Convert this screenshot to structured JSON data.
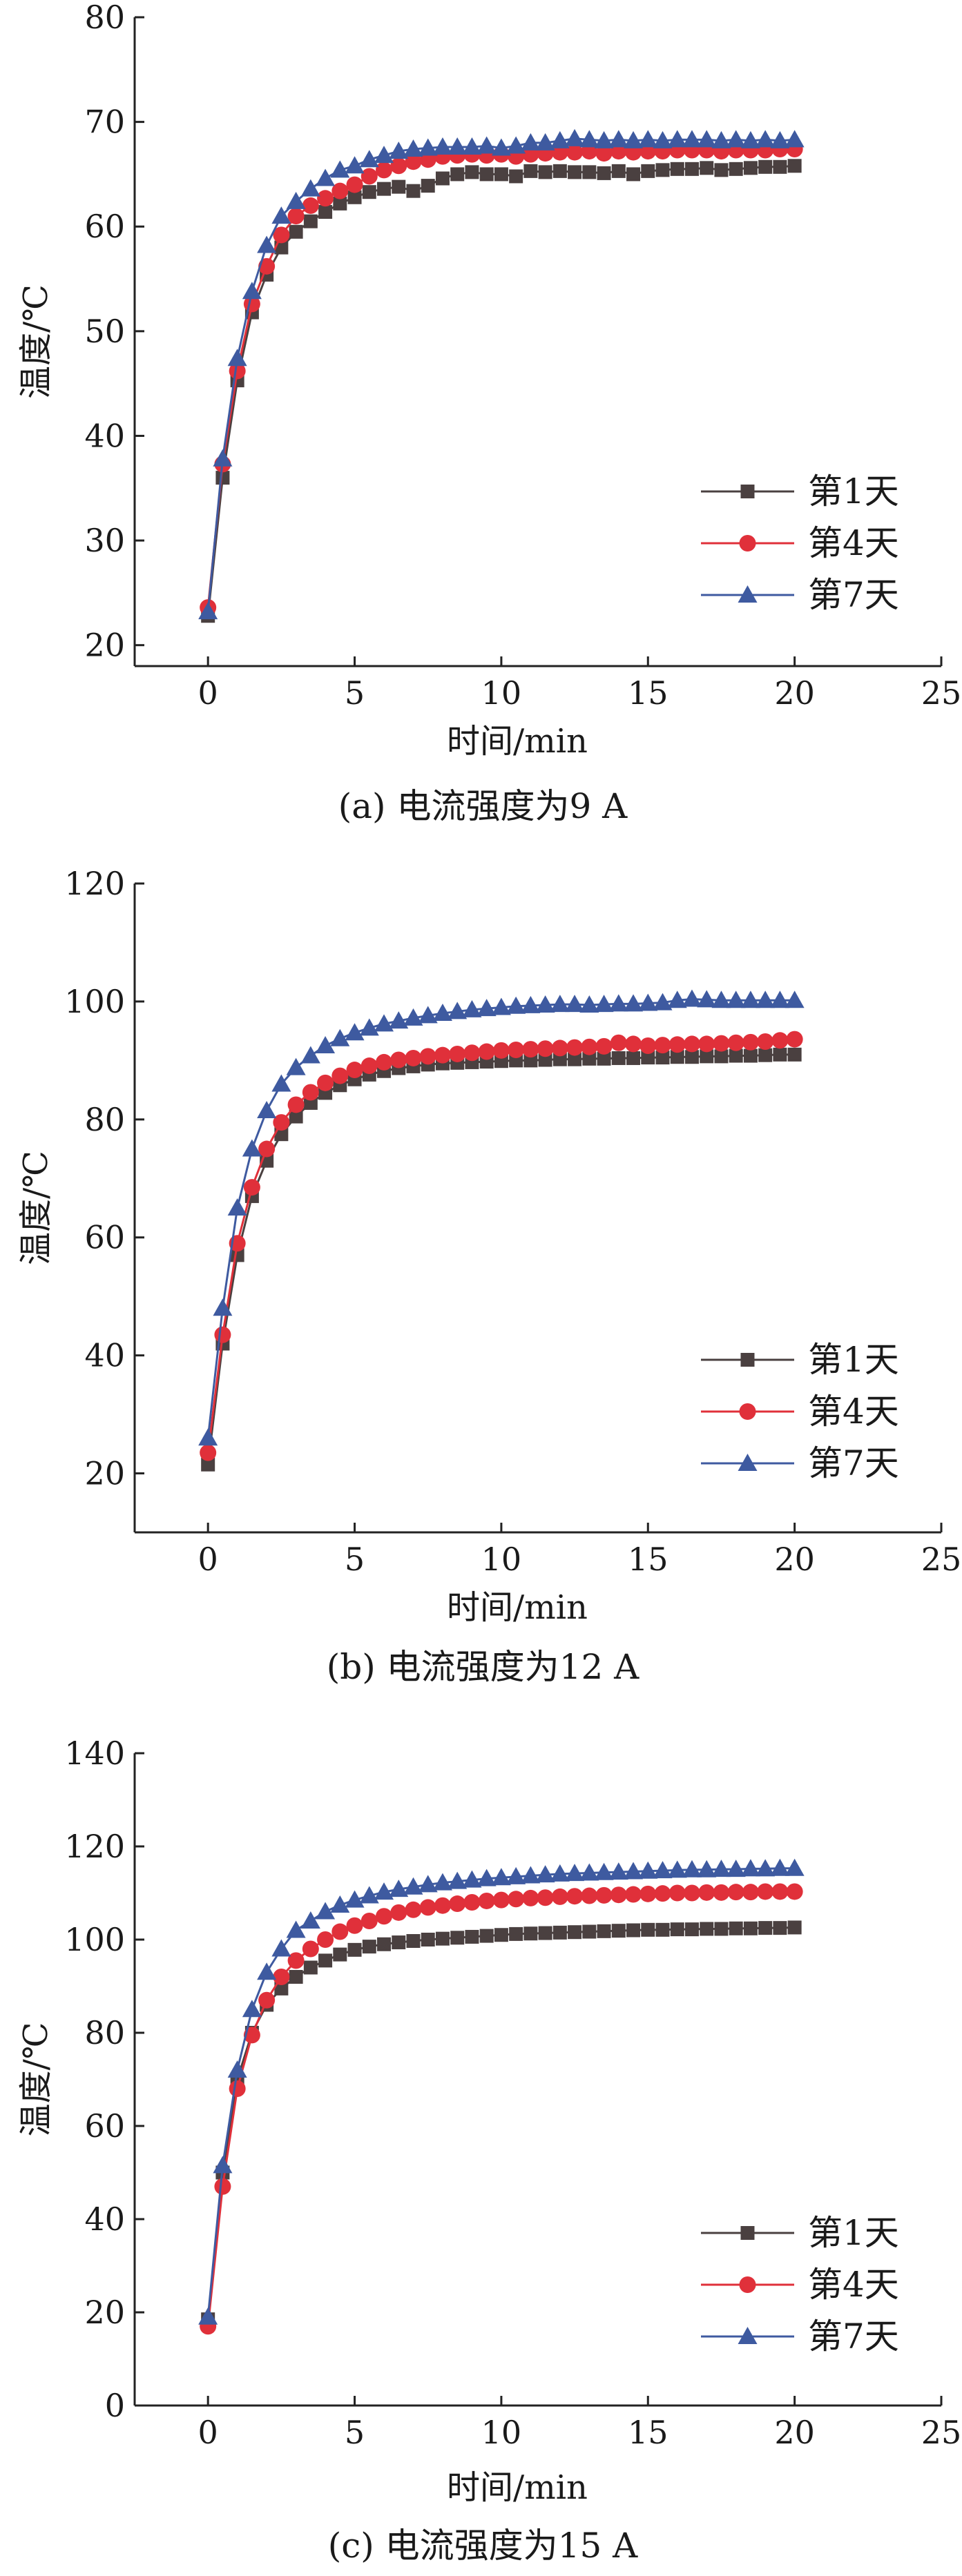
{
  "chart_data": [
    {
      "type": "line",
      "caption": "(a) 电流强度为9 A",
      "xlabel": "时间/min",
      "ylabel": "温度/℃",
      "xlim": [
        -2.5,
        25
      ],
      "ylim": [
        18,
        80
      ],
      "xticks": [
        0,
        5,
        10,
        15,
        20,
        25
      ],
      "yticks": [
        20,
        30,
        40,
        50,
        60,
        70,
        80
      ],
      "grid": false,
      "legend_position": "right",
      "series": [
        {
          "name": "第1天",
          "color": "#4a4040",
          "marker": "square",
          "x": [
            0,
            0.5,
            1,
            1.5,
            2,
            2.5,
            3,
            3.5,
            4,
            4.5,
            5,
            5.5,
            6,
            6.5,
            7,
            7.5,
            8,
            8.5,
            9,
            9.5,
            10,
            10.5,
            11,
            11.5,
            12,
            12.5,
            13,
            13.5,
            14,
            14.5,
            15,
            15.5,
            16,
            16.5,
            17,
            17.5,
            18,
            18.5,
            19,
            19.5,
            20
          ],
          "y": [
            22.8,
            36,
            45.3,
            51.8,
            55.4,
            58,
            59.5,
            60.5,
            61.4,
            62.2,
            62.8,
            63.3,
            63.6,
            63.8,
            63.4,
            63.9,
            64.6,
            65.0,
            65.2,
            65.0,
            65.0,
            64.8,
            65.3,
            65.2,
            65.3,
            65.2,
            65.2,
            65.1,
            65.3,
            65.0,
            65.3,
            65.4,
            65.5,
            65.5,
            65.6,
            65.4,
            65.5,
            65.6,
            65.7,
            65.7,
            65.8
          ]
        },
        {
          "name": "第4天",
          "color": "#e0303a",
          "marker": "circle",
          "x": [
            0,
            0.5,
            1,
            1.5,
            2,
            2.5,
            3,
            3.5,
            4,
            4.5,
            5,
            5.5,
            6,
            6.5,
            7,
            7.5,
            8,
            8.5,
            9,
            9.5,
            10,
            10.5,
            11,
            11.5,
            12,
            12.5,
            13,
            13.5,
            14,
            14.5,
            15,
            15.5,
            16,
            16.5,
            17,
            17.5,
            18,
            18.5,
            19,
            19.5,
            20
          ],
          "y": [
            23.6,
            37.3,
            46.2,
            52.6,
            56.2,
            59.2,
            61,
            62,
            62.7,
            63.4,
            64,
            64.8,
            65.4,
            65.8,
            66.2,
            66.4,
            66.7,
            66.8,
            66.9,
            66.8,
            66.9,
            66.7,
            66.9,
            67.0,
            67.1,
            67.1,
            67.2,
            67.0,
            67.2,
            67.1,
            67.2,
            67.2,
            67.3,
            67.3,
            67.3,
            67.2,
            67.3,
            67.3,
            67.3,
            67.4,
            67.4
          ]
        },
        {
          "name": "第7天",
          "color": "#3e5aa0",
          "marker": "triangle",
          "x": [
            0,
            0.5,
            1,
            1.5,
            2,
            2.5,
            3,
            3.5,
            4,
            4.5,
            5,
            5.5,
            6,
            6.5,
            7,
            7.5,
            8,
            8.5,
            9,
            9.5,
            10,
            10.5,
            11,
            11.5,
            12,
            12.5,
            13,
            13.5,
            14,
            14.5,
            15,
            15.5,
            16,
            16.5,
            17,
            17.5,
            18,
            18.5,
            19,
            19.5,
            20
          ],
          "y": [
            23.2,
            37.8,
            47.4,
            53.8,
            58.2,
            61,
            62.4,
            63.6,
            64.6,
            65.4,
            65.8,
            66.4,
            66.8,
            67.2,
            67.4,
            67.5,
            67.6,
            67.6,
            67.6,
            67.7,
            67.5,
            67.7,
            68.0,
            68.0,
            68.2,
            68.4,
            68.3,
            68.2,
            68.3,
            68.2,
            68.3,
            68.2,
            68.3,
            68.3,
            68.3,
            68.2,
            68.3,
            68.2,
            68.3,
            68.2,
            68.3
          ]
        }
      ]
    },
    {
      "type": "line",
      "caption": "(b) 电流强度为12 A",
      "xlabel": "时间/min",
      "ylabel": "温度/℃",
      "xlim": [
        -2.5,
        25
      ],
      "ylim": [
        10,
        120
      ],
      "xticks": [
        0,
        5,
        10,
        15,
        20,
        25
      ],
      "yticks": [
        20,
        40,
        60,
        80,
        100,
        120
      ],
      "grid": false,
      "legend_position": "right",
      "series": [
        {
          "name": "第1天",
          "color": "#4a4040",
          "marker": "square",
          "x": [
            0,
            0.5,
            1,
            1.5,
            2,
            2.5,
            3,
            3.5,
            4,
            4.5,
            5,
            5.5,
            6,
            6.5,
            7,
            7.5,
            8,
            8.5,
            9,
            9.5,
            10,
            10.5,
            11,
            11.5,
            12,
            12.5,
            13,
            13.5,
            14,
            14.5,
            15,
            15.5,
            16,
            16.5,
            17,
            17.5,
            18,
            18.5,
            19,
            19.5,
            20
          ],
          "y": [
            21.5,
            42,
            57,
            67,
            73,
            77.5,
            80.5,
            82.8,
            84.5,
            85.8,
            86.8,
            87.6,
            88.2,
            88.7,
            89.0,
            89.3,
            89.5,
            89.6,
            89.7,
            89.8,
            89.9,
            90.0,
            90.0,
            90.1,
            90.2,
            90.2,
            90.3,
            90.3,
            90.4,
            90.4,
            90.5,
            90.5,
            90.6,
            90.6,
            90.7,
            90.7,
            90.8,
            90.8,
            90.9,
            91.0,
            91.0
          ]
        },
        {
          "name": "第4天",
          "color": "#e0303a",
          "marker": "circle",
          "x": [
            0,
            0.5,
            1,
            1.5,
            2,
            2.5,
            3,
            3.5,
            4,
            4.5,
            5,
            5.5,
            6,
            6.5,
            7,
            7.5,
            8,
            8.5,
            9,
            9.5,
            10,
            10.5,
            11,
            11.5,
            12,
            12.5,
            13,
            13.5,
            14,
            14.5,
            15,
            15.5,
            16,
            16.5,
            17,
            17.5,
            18,
            18.5,
            19,
            19.5,
            20
          ],
          "y": [
            23.5,
            43.5,
            59,
            68.5,
            75,
            79.5,
            82.5,
            84.6,
            86.2,
            87.4,
            88.4,
            89.1,
            89.7,
            90.1,
            90.4,
            90.7,
            90.9,
            91.1,
            91.3,
            91.5,
            91.7,
            91.8,
            91.9,
            92.0,
            92.1,
            92.2,
            92.3,
            92.4,
            93.0,
            92.8,
            92.5,
            92.6,
            92.7,
            92.8,
            92.8,
            92.9,
            93.0,
            93.1,
            93.2,
            93.4,
            93.6
          ]
        },
        {
          "name": "第7天",
          "color": "#3e5aa0",
          "marker": "triangle",
          "x": [
            0,
            0.5,
            1,
            1.5,
            2,
            2.5,
            3,
            3.5,
            4,
            4.5,
            5,
            5.5,
            6,
            6.5,
            7,
            7.5,
            8,
            8.5,
            9,
            9.5,
            10,
            10.5,
            11,
            11.5,
            12,
            12.5,
            13,
            13.5,
            14,
            14.5,
            15,
            15.5,
            16,
            16.5,
            17,
            17.5,
            18,
            18.5,
            19,
            19.5,
            20
          ],
          "y": [
            26,
            48,
            65,
            75,
            81.5,
            86,
            88.8,
            90.8,
            92.5,
            93.7,
            94.7,
            95.5,
            96.2,
            96.7,
            97.2,
            97.6,
            98.0,
            98.3,
            98.6,
            98.8,
            99.0,
            99.2,
            99.3,
            99.4,
            99.5,
            99.5,
            99.4,
            99.5,
            99.6,
            99.6,
            99.7,
            99.8,
            100.2,
            100.4,
            100.3,
            100.2,
            100.2,
            100.2,
            100.2,
            100.2,
            100.2
          ]
        }
      ]
    },
    {
      "type": "line",
      "caption": "(c) 电流强度为15 A",
      "xlabel": "时间/min",
      "ylabel": "温度/℃",
      "xlim": [
        -2.5,
        25
      ],
      "ylim": [
        0,
        140
      ],
      "xticks": [
        0,
        5,
        10,
        15,
        20,
        25
      ],
      "yticks": [
        0,
        20,
        40,
        60,
        80,
        100,
        120,
        140
      ],
      "grid": false,
      "legend_position": "bottom-right",
      "series": [
        {
          "name": "第1天",
          "color": "#4a4040",
          "marker": "square",
          "x": [
            0,
            0.5,
            1,
            1.5,
            2,
            2.5,
            3,
            3.5,
            4,
            4.5,
            5,
            5.5,
            6,
            6.5,
            7,
            7.5,
            8,
            8.5,
            9,
            9.5,
            10,
            10.5,
            11,
            11.5,
            12,
            12.5,
            13,
            13.5,
            14,
            14.5,
            15,
            15.5,
            16,
            16.5,
            17,
            17.5,
            18,
            18.5,
            19,
            19.5,
            20
          ],
          "y": [
            18.5,
            50,
            70,
            80,
            86,
            89.5,
            92,
            94,
            95.5,
            96.8,
            97.8,
            98.5,
            99.0,
            99.4,
            99.7,
            100.0,
            100.2,
            100.4,
            100.6,
            100.8,
            101.0,
            101.2,
            101.3,
            101.4,
            101.5,
            101.6,
            101.7,
            101.8,
            101.9,
            102.0,
            102.1,
            102.1,
            102.2,
            102.2,
            102.3,
            102.3,
            102.4,
            102.4,
            102.5,
            102.5,
            102.6
          ]
        },
        {
          "name": "第4天",
          "color": "#e0303a",
          "marker": "circle",
          "x": [
            0,
            0.5,
            1,
            1.5,
            2,
            2.5,
            3,
            3.5,
            4,
            4.5,
            5,
            5.5,
            6,
            6.5,
            7,
            7.5,
            8,
            8.5,
            9,
            9.5,
            10,
            10.5,
            11,
            11.5,
            12,
            12.5,
            13,
            13.5,
            14,
            14.5,
            15,
            15.5,
            16,
            16.5,
            17,
            17.5,
            18,
            18.5,
            19,
            19.5,
            20
          ],
          "y": [
            17,
            47,
            68,
            79.5,
            87,
            92,
            95.5,
            98,
            100,
            101.7,
            103,
            104,
            105,
            105.8,
            106.4,
            106.9,
            107.3,
            107.7,
            108.0,
            108.3,
            108.5,
            108.7,
            108.9,
            109.0,
            109.2,
            109.3,
            109.4,
            109.5,
            109.6,
            109.7,
            109.8,
            109.9,
            110.0,
            110.0,
            110.1,
            110.1,
            110.2,
            110.2,
            110.3,
            110.3,
            110.3
          ]
        },
        {
          "name": "第7天",
          "color": "#3e5aa0",
          "marker": "triangle",
          "x": [
            0,
            0.5,
            1,
            1.5,
            2,
            2.5,
            3,
            3.5,
            4,
            4.5,
            5,
            5.5,
            6,
            6.5,
            7,
            7.5,
            8,
            8.5,
            9,
            9.5,
            10,
            10.5,
            11,
            11.5,
            12,
            12.5,
            13,
            13.5,
            14,
            14.5,
            15,
            15.5,
            16,
            16.5,
            17,
            17.5,
            18,
            18.5,
            19,
            19.5,
            20
          ],
          "y": [
            19,
            51.5,
            72,
            85,
            93,
            98,
            102,
            104,
            106,
            107.4,
            108.5,
            109.4,
            110.2,
            110.8,
            111.3,
            111.8,
            112.2,
            112.5,
            112.8,
            113.1,
            113.3,
            113.5,
            113.7,
            113.9,
            114.1,
            114.2,
            114.3,
            114.4,
            114.5,
            114.6,
            114.7,
            114.8,
            114.9,
            115.0,
            115.0,
            115.1,
            115.1,
            115.2,
            115.2,
            115.3,
            115.3
          ]
        }
      ]
    }
  ]
}
